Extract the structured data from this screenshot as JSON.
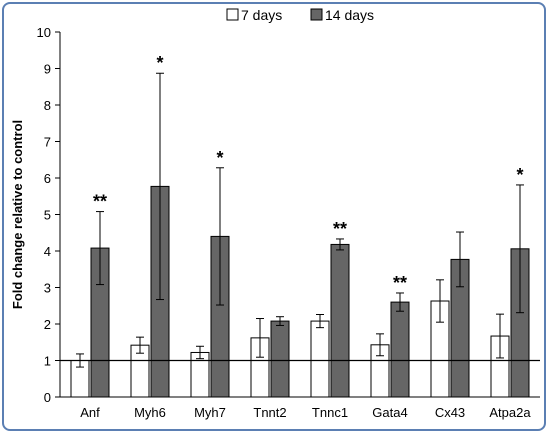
{
  "chart_data": {
    "type": "bar",
    "title": "",
    "xlabel": "",
    "ylabel": "Fold change relative to control",
    "ylim": [
      0,
      10
    ],
    "yticks": [
      0,
      1,
      2,
      3,
      4,
      5,
      6,
      7,
      8,
      9,
      10
    ],
    "reference_line": 1,
    "legend_position": "top-center",
    "categories": [
      "Anf",
      "Myh6",
      "Myh7",
      "Tnnt2",
      "Tnnc1",
      "Gata4",
      "Cx43",
      "Atpa2a"
    ],
    "series": [
      {
        "name": "7 days",
        "color": "#ffffff",
        "values": [
          1.0,
          1.42,
          1.22,
          1.62,
          2.08,
          1.43,
          2.63,
          1.67
        ],
        "errors": [
          0.18,
          0.22,
          0.17,
          0.53,
          0.18,
          0.3,
          0.58,
          0.6
        ]
      },
      {
        "name": "14 days",
        "color": "#666666",
        "values": [
          4.08,
          5.77,
          4.4,
          2.08,
          4.18,
          2.6,
          3.77,
          4.06
        ],
        "errors": [
          1.0,
          3.1,
          1.88,
          0.12,
          0.15,
          0.25,
          0.75,
          1.75
        ]
      }
    ],
    "annotations": [
      "**",
      "*",
      "*",
      "",
      "**",
      "**",
      "",
      "*"
    ]
  }
}
